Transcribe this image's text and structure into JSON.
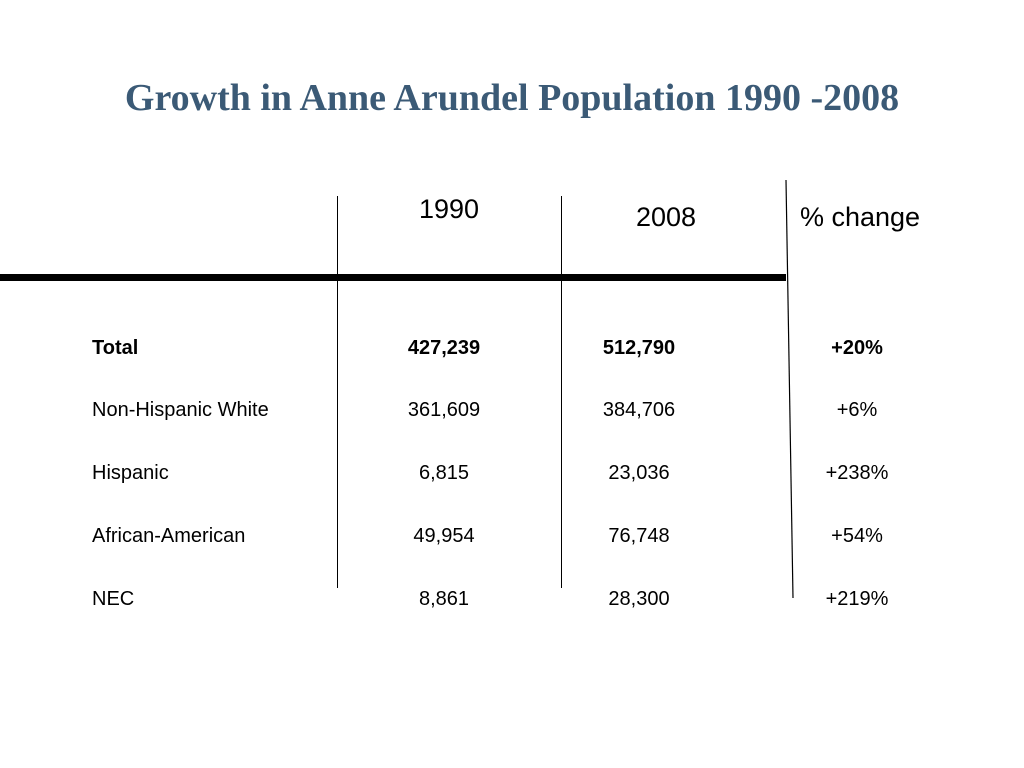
{
  "slide": {
    "title": "Growth in Anne Arundel Population 1990 -2008"
  },
  "table": {
    "headers": {
      "col_1990": "1990",
      "col_2008": "2008",
      "col_change": "% change"
    },
    "rows": [
      {
        "label": "Total",
        "v1990": "427,239",
        "v2008": "512,790",
        "change": "+20%"
      },
      {
        "label": "Non-Hispanic White",
        "v1990": "361,609",
        "v2008": "384,706",
        "change": "+6%"
      },
      {
        "label": "Hispanic",
        "v1990": "6,815",
        "v2008": "23,036",
        "change": "+238%"
      },
      {
        "label": "African-American",
        "v1990": "49,954",
        "v2008": "76,748",
        "change": "+54%"
      },
      {
        "label": "NEC",
        "v1990": "8,861",
        "v2008": "28,300",
        "change": "+219%"
      }
    ]
  },
  "colors": {
    "title": "#3b5a76",
    "text": "#000000",
    "background": "#ffffff"
  }
}
